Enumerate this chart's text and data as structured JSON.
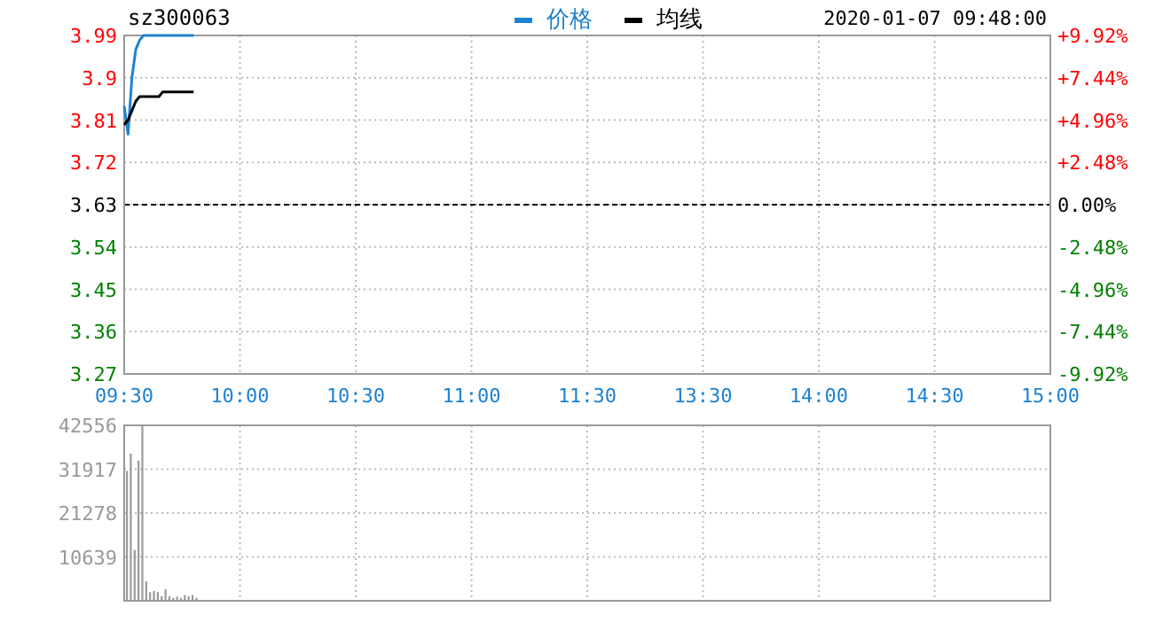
{
  "chart_data": [
    {
      "type": "line",
      "title": "sz300063",
      "annotations": [
        "2020-01-07 09:48:00"
      ],
      "legend": "top",
      "grid": true,
      "categories": [
        "09:30",
        null,
        null,
        null,
        null,
        null,
        null,
        null,
        null,
        null,
        null,
        null,
        null,
        null,
        null,
        null,
        null,
        null,
        null,
        null,
        null,
        null,
        null,
        null,
        null,
        null,
        null,
        null,
        null,
        null,
        "10:00",
        null,
        null,
        null,
        null,
        null,
        null,
        null,
        null,
        null,
        null,
        null,
        null,
        null,
        null,
        null,
        null,
        null,
        null,
        null,
        null,
        null,
        null,
        null,
        null,
        null,
        null,
        null,
        null,
        null,
        "10:30",
        null,
        null,
        null,
        null,
        null,
        null,
        null,
        null,
        null,
        null,
        null,
        null,
        null,
        null,
        null,
        null,
        null,
        null,
        null,
        null,
        null,
        null,
        null,
        null,
        null,
        null,
        null,
        null,
        null,
        "11:00",
        null,
        null,
        null,
        null,
        null,
        null,
        null,
        null,
        null,
        null,
        null,
        null,
        null,
        null,
        null,
        null,
        null,
        null,
        null,
        null,
        null,
        null,
        null,
        null,
        null,
        null,
        null,
        null,
        null,
        "11:30",
        null,
        null,
        null,
        null,
        null,
        null,
        null,
        null,
        null,
        null,
        null,
        null,
        null,
        null,
        null,
        null,
        null,
        null,
        null,
        null,
        null,
        null,
        null,
        null,
        null,
        null,
        null,
        null,
        null,
        "13:30",
        null,
        null,
        null,
        null,
        null,
        null,
        null,
        null,
        null,
        null,
        null,
        null,
        null,
        null,
        null,
        null,
        null,
        null,
        null,
        null,
        null,
        null,
        null,
        null,
        null,
        null,
        null,
        null,
        null,
        "14:00",
        null,
        null,
        null,
        null,
        null,
        null,
        null,
        null,
        null,
        null,
        null,
        null,
        null,
        null,
        null,
        null,
        null,
        null,
        null,
        null,
        null,
        null,
        null,
        null,
        null,
        null,
        null,
        null,
        null,
        "14:30",
        null,
        null,
        null,
        null,
        null,
        null,
        null,
        null,
        null,
        null,
        null,
        null,
        null,
        null,
        null,
        null,
        null,
        null,
        null,
        null,
        null,
        null,
        null,
        null,
        null,
        null,
        null,
        null,
        null,
        "15:00"
      ],
      "ylim": [
        3.27,
        3.99
      ],
      "yticks": [
        3.27,
        3.36,
        3.45,
        3.54,
        3.63,
        3.72,
        3.81,
        3.9,
        3.99
      ],
      "y2lim": [
        -9.92,
        9.92
      ],
      "y2ticks": [
        {
          "value": -9.92,
          "label": "-9.92%"
        },
        {
          "value": -7.44,
          "label": "-7.44%"
        },
        {
          "value": -4.96,
          "label": "-4.96%"
        },
        {
          "value": -2.48,
          "label": "-2.48%"
        },
        {
          "value": 0,
          "label": "0.00%"
        },
        {
          "value": 2.48,
          "label": "+2.48%"
        },
        {
          "value": 4.96,
          "label": "+4.96%"
        },
        {
          "value": 7.44,
          "label": "+7.44%"
        },
        {
          "value": 9.92,
          "label": "+9.92%"
        }
      ],
      "ref_lines": [
        {
          "axis": "y",
          "value": 3.63,
          "color": "#000000",
          "line_style": "dashed"
        }
      ],
      "series": [
        {
          "name": "价格",
          "color": "#1e82d2",
          "values": [
            3.84,
            3.78,
            3.9,
            3.96,
            3.98,
            3.99,
            3.99,
            3.99,
            3.99,
            3.99,
            3.99,
            3.99,
            3.99,
            3.99,
            3.99,
            3.99,
            3.99,
            3.99,
            3.99,
            null,
            null,
            null,
            null,
            null,
            null,
            null,
            null,
            null,
            null,
            null,
            null,
            null,
            null,
            null,
            null,
            null,
            null,
            null,
            null,
            null,
            null,
            null,
            null,
            null,
            null,
            null,
            null,
            null,
            null,
            null,
            null,
            null,
            null,
            null,
            null,
            null,
            null,
            null,
            null,
            null,
            null,
            null,
            null,
            null,
            null,
            null,
            null,
            null,
            null,
            null,
            null,
            null,
            null,
            null,
            null,
            null,
            null,
            null,
            null,
            null,
            null,
            null,
            null,
            null,
            null,
            null,
            null,
            null,
            null,
            null,
            null,
            null,
            null,
            null,
            null,
            null,
            null,
            null,
            null,
            null,
            null,
            null,
            null,
            null,
            null,
            null,
            null,
            null,
            null,
            null,
            null,
            null,
            null,
            null,
            null,
            null,
            null,
            null,
            null,
            null,
            null,
            null,
            null,
            null,
            null,
            null,
            null,
            null,
            null,
            null,
            null,
            null,
            null,
            null,
            null,
            null,
            null,
            null,
            null,
            null,
            null,
            null,
            null,
            null,
            null,
            null,
            null,
            null,
            null,
            null,
            null,
            null,
            null,
            null,
            null,
            null,
            null,
            null,
            null,
            null,
            null,
            null,
            null,
            null,
            null,
            null,
            null,
            null,
            null,
            null,
            null,
            null,
            null,
            null,
            null,
            null,
            null,
            null,
            null,
            null,
            null,
            null,
            null,
            null,
            null,
            null,
            null,
            null,
            null,
            null,
            null,
            null,
            null,
            null,
            null,
            null,
            null,
            null,
            null,
            null,
            null,
            null,
            null,
            null,
            null,
            null,
            null,
            null,
            null,
            null,
            null,
            null,
            null,
            null,
            null,
            null,
            null,
            null,
            null,
            null,
            null,
            null,
            null,
            null,
            null,
            null,
            null,
            null,
            null,
            null,
            null,
            null,
            null,
            null,
            null,
            null,
            null,
            null,
            null,
            null,
            null
          ]
        },
        {
          "name": "均线",
          "color": "#000000",
          "values": [
            3.8,
            3.81,
            3.83,
            3.85,
            3.86,
            3.86,
            3.86,
            3.86,
            3.86,
            3.86,
            3.87,
            3.87,
            3.87,
            3.87,
            3.87,
            3.87,
            3.87,
            3.87,
            3.87,
            null,
            null,
            null,
            null,
            null,
            null,
            null,
            null,
            null,
            null,
            null,
            null,
            null,
            null,
            null,
            null,
            null,
            null,
            null,
            null,
            null,
            null,
            null,
            null,
            null,
            null,
            null,
            null,
            null,
            null,
            null,
            null,
            null,
            null,
            null,
            null,
            null,
            null,
            null,
            null,
            null,
            null,
            null,
            null,
            null,
            null,
            null,
            null,
            null,
            null,
            null,
            null,
            null,
            null,
            null,
            null,
            null,
            null,
            null,
            null,
            null,
            null,
            null,
            null,
            null,
            null,
            null,
            null,
            null,
            null,
            null,
            null,
            null,
            null,
            null,
            null,
            null,
            null,
            null,
            null,
            null,
            null,
            null,
            null,
            null,
            null,
            null,
            null,
            null,
            null,
            null,
            null,
            null,
            null,
            null,
            null,
            null,
            null,
            null,
            null,
            null,
            null,
            null,
            null,
            null,
            null,
            null,
            null,
            null,
            null,
            null,
            null,
            null,
            null,
            null,
            null,
            null,
            null,
            null,
            null,
            null,
            null,
            null,
            null,
            null,
            null,
            null,
            null,
            null,
            null,
            null,
            null,
            null,
            null,
            null,
            null,
            null,
            null,
            null,
            null,
            null,
            null,
            null,
            null,
            null,
            null,
            null,
            null,
            null,
            null,
            null,
            null,
            null,
            null,
            null,
            null,
            null,
            null,
            null,
            null,
            null,
            null,
            null,
            null,
            null,
            null,
            null,
            null,
            null,
            null,
            null,
            null,
            null,
            null,
            null,
            null,
            null,
            null,
            null,
            null,
            null,
            null,
            null,
            null,
            null,
            null,
            null,
            null,
            null,
            null,
            null,
            null,
            null,
            null,
            null,
            null,
            null,
            null,
            null,
            null,
            null,
            null,
            null,
            null,
            null,
            null,
            null,
            null,
            null,
            null,
            null,
            null,
            null,
            null,
            null,
            null,
            null,
            null,
            null,
            null,
            null,
            null
          ]
        }
      ]
    },
    {
      "type": "bar",
      "grid": true,
      "tick_labels": "y",
      "categories": [
        null,
        null,
        null,
        null,
        null,
        null,
        null,
        null,
        null,
        null,
        null,
        null,
        null,
        null,
        null,
        null,
        null,
        null,
        null,
        null,
        null,
        null,
        null,
        null,
        null,
        null,
        null,
        null,
        null,
        null,
        null,
        null,
        null,
        null,
        null,
        null,
        null,
        null,
        null,
        null,
        null,
        null,
        null,
        null,
        null,
        null,
        null,
        null,
        null,
        null,
        null,
        null,
        null,
        null,
        null,
        null,
        null,
        null,
        null,
        null,
        null,
        null,
        null,
        null,
        null,
        null,
        null,
        null,
        null,
        null,
        null,
        null,
        null,
        null,
        null,
        null,
        null,
        null,
        null,
        null,
        null,
        null,
        null,
        null,
        null,
        null,
        null,
        null,
        null,
        null,
        null,
        null,
        null,
        null,
        null,
        null,
        null,
        null,
        null,
        null,
        null,
        null,
        null,
        null,
        null,
        null,
        null,
        null,
        null,
        null,
        null,
        null,
        null,
        null,
        null,
        null,
        null,
        null,
        null,
        null,
        null,
        null,
        null,
        null,
        null,
        null,
        null,
        null,
        null,
        null,
        null,
        null,
        null,
        null,
        null,
        null,
        null,
        null,
        null,
        null,
        null,
        null,
        null,
        null,
        null,
        null,
        null,
        null,
        null,
        null,
        null,
        null,
        null,
        null,
        null,
        null,
        null,
        null,
        null,
        null,
        null,
        null,
        null,
        null,
        null,
        null,
        null,
        null,
        null,
        null,
        null,
        null,
        null,
        null,
        null,
        null,
        null,
        null,
        null,
        null,
        null,
        null,
        null,
        null,
        null,
        null,
        null,
        null,
        null,
        null,
        null,
        null,
        null,
        null,
        null,
        null,
        null,
        null,
        null,
        null,
        null,
        null,
        null,
        null,
        null,
        null,
        null,
        null,
        null,
        null,
        null,
        null,
        null,
        null,
        null,
        null,
        null,
        null,
        null,
        null,
        null,
        null,
        null,
        null,
        null,
        null,
        null,
        null,
        null,
        null,
        null,
        null,
        null,
        null,
        null,
        null,
        null,
        null,
        null,
        null,
        null
      ],
      "ylim": [
        0,
        42556
      ],
      "yticks": [
        10639,
        21278,
        31917,
        42556
      ],
      "series": [
        {
          "color": "#999999",
          "values": [
            31500,
            35700,
            12300,
            34000,
            42500,
            4700,
            2100,
            2400,
            2100,
            1100,
            2800,
            1100,
            700,
            1000,
            700,
            1400,
            1100,
            1400,
            700,
            null,
            null,
            null,
            null,
            null,
            null,
            null,
            null,
            null,
            null,
            null,
            null,
            null,
            null,
            null,
            null,
            null,
            null,
            null,
            null,
            null,
            null,
            null,
            null,
            null,
            null,
            null,
            null,
            null,
            null,
            null,
            null,
            null,
            null,
            null,
            null,
            null,
            null,
            null,
            null,
            null,
            null,
            null,
            null,
            null,
            null,
            null,
            null,
            null,
            null,
            null,
            null,
            null,
            null,
            null,
            null,
            null,
            null,
            null,
            null,
            null,
            null,
            null,
            null,
            null,
            null,
            null,
            null,
            null,
            null,
            null,
            null,
            null,
            null,
            null,
            null,
            null,
            null,
            null,
            null,
            null,
            null,
            null,
            null,
            null,
            null,
            null,
            null,
            null,
            null,
            null,
            null,
            null,
            null,
            null,
            null,
            null,
            null,
            null,
            null,
            null,
            null,
            null,
            null,
            null,
            null,
            null,
            null,
            null,
            null,
            null,
            null,
            null,
            null,
            null,
            null,
            null,
            null,
            null,
            null,
            null,
            null,
            null,
            null,
            null,
            null,
            null,
            null,
            null,
            null,
            null,
            null,
            null,
            null,
            null,
            null,
            null,
            null,
            null,
            null,
            null,
            null,
            null,
            null,
            null,
            null,
            null,
            null,
            null,
            null,
            null,
            null,
            null,
            null,
            null,
            null,
            null,
            null,
            null,
            null,
            null,
            null,
            null,
            null,
            null,
            null,
            null,
            null,
            null,
            null,
            null,
            null,
            null,
            null,
            null,
            null,
            null,
            null,
            null,
            null,
            null,
            null,
            null,
            null,
            null,
            null,
            null,
            null,
            null,
            null,
            null,
            null,
            null,
            null,
            null,
            null,
            null,
            null,
            null,
            null,
            null,
            null,
            null,
            null,
            null,
            null,
            null,
            null,
            null,
            null,
            null,
            null,
            null,
            null,
            null,
            null,
            null,
            null,
            null,
            null,
            null,
            null
          ]
        }
      ]
    }
  ]
}
